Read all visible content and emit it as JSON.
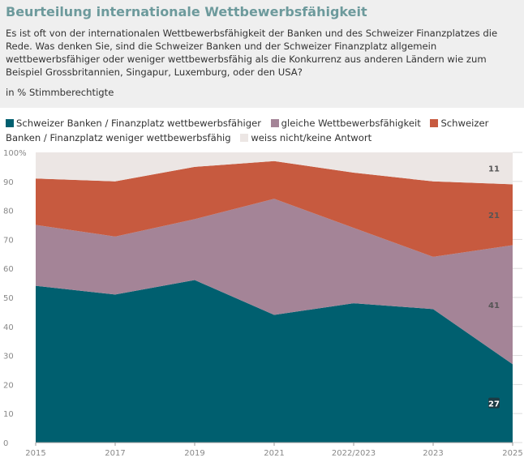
{
  "header": {
    "title": "Beurteilung internationale Wettbewerbsfähigkeit",
    "subtitle": "Es ist oft von der internationalen Wettbewerbsfähigkeit der Banken und des Schweizer Finanzplatzes die Rede. Was denken Sie, sind die Schweizer Banken und der Schweizer Finanzplatz allgemein wettbewerbsfähiger oder weniger wettbewerbsfähig als die Konkurrenz aus anderen Ländern wie zum Beispiel Grossbritannien, Singapur, Luxemburg, oder den USA?",
    "unit": "in % Stimmberechtigte"
  },
  "chart_data": {
    "type": "area",
    "stacked": true,
    "categories": [
      "2015",
      "2017",
      "2019",
      "2021",
      "2022/2023",
      "2023",
      "2025"
    ],
    "ylim": [
      0,
      100
    ],
    "yticks": [
      "0",
      "10",
      "20",
      "30",
      "40",
      "50",
      "60",
      "70",
      "80",
      "90",
      "100%"
    ],
    "legend_position": "top",
    "series": [
      {
        "name": "Schweizer Banken / Finanzplatz wettbewerbsfähiger",
        "color": "#005f6f",
        "values": [
          54,
          51,
          56,
          44,
          48,
          46,
          27
        ]
      },
      {
        "name": "gleiche Wettbewerbsfähigkeit",
        "color": "#a48497",
        "values": [
          21,
          20,
          21,
          40,
          26,
          18,
          41
        ]
      },
      {
        "name": "Schweizer Banken / Finanzplatz weniger wettbewerbsfähig",
        "color": "#c75a3f",
        "values": [
          16,
          19,
          18,
          13,
          19,
          26,
          21
        ]
      },
      {
        "name": "weiss nicht/keine Antwort",
        "color": "#ece6e4",
        "values": [
          9,
          10,
          5,
          3,
          7,
          10,
          11
        ]
      }
    ],
    "data_labels": {
      "category": "2025",
      "labels": [
        "27",
        "41",
        "21",
        "11"
      ]
    }
  }
}
